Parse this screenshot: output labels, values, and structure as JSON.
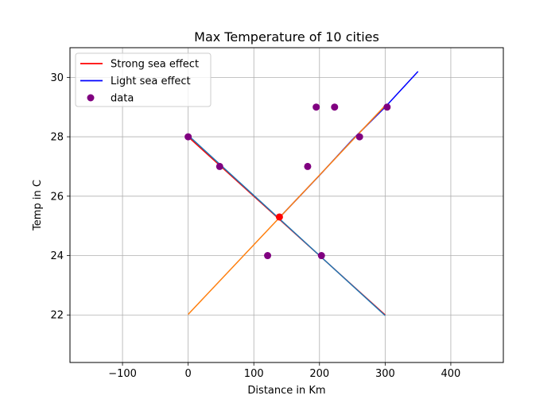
{
  "chart_data": {
    "type": "line",
    "title": "Max Temperature of 10 cities",
    "xlabel": "Distance in Km",
    "ylabel": "Temp in C",
    "xlim": [
      -180,
      480
    ],
    "ylim": [
      20.4,
      31.0
    ],
    "xticks": [
      -100,
      0,
      100,
      200,
      300,
      400
    ],
    "yticks": [
      22,
      24,
      26,
      28,
      30
    ],
    "xtick_labels": [
      "−100",
      "0",
      "100",
      "200",
      "300",
      "400"
    ],
    "ytick_labels": [
      "22",
      "24",
      "26",
      "28",
      "30"
    ],
    "grid": true,
    "legend_position": "top-left",
    "legend": [
      {
        "label": "Strong sea effect",
        "kind": "line",
        "color": "#ff0000"
      },
      {
        "label": "Light sea effect",
        "kind": "line",
        "color": "#0000ff"
      },
      {
        "label": "data",
        "kind": "marker",
        "color": "#800080"
      }
    ],
    "lines": [
      {
        "name": "Strong sea effect",
        "color": "#ff0000",
        "x": [
          0,
          50,
          100,
          150,
          200,
          250,
          300
        ],
        "y": [
          28.0,
          27.0,
          26.0,
          25.0,
          24.0,
          23.0,
          22.0
        ]
      },
      {
        "name": "Light sea effect",
        "color": "#0000ff",
        "x": [
          140,
          200,
          250,
          300,
          350
        ],
        "y": [
          25.3,
          26.7,
          27.9,
          29.0,
          30.2
        ]
      },
      {
        "color": "#1f77b4",
        "x": [
          0,
          300
        ],
        "y": [
          28.05,
          21.98
        ]
      },
      {
        "color": "#ff7f0e",
        "x": [
          0,
          300
        ],
        "y": [
          22.02,
          29.05
        ]
      }
    ],
    "scatter": {
      "name": "data",
      "color": "#800080",
      "points": [
        {
          "x": 0,
          "y": 28
        },
        {
          "x": 48,
          "y": 27
        },
        {
          "x": 121,
          "y": 24
        },
        {
          "x": 182,
          "y": 27
        },
        {
          "x": 195,
          "y": 29
        },
        {
          "x": 203,
          "y": 24
        },
        {
          "x": 223,
          "y": 29
        },
        {
          "x": 261,
          "y": 28
        },
        {
          "x": 303,
          "y": 29
        }
      ]
    },
    "intersection_point": {
      "x": 139,
      "y": 25.3,
      "color": "#ff0000"
    }
  }
}
